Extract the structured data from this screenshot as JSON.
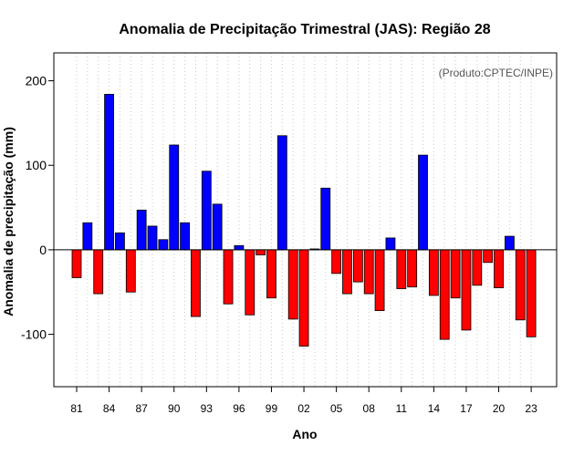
{
  "chart_data": {
    "type": "bar",
    "title": "Anomalia de Precipitação Trimestral (JAS): Região 28",
    "xlabel": "Ano",
    "ylabel": "Anomalia de precipitação (mm)",
    "annotation": "(Produto:CPTEC/INPE)",
    "ylim": [
      -162,
      233
    ],
    "yticks": [
      -100,
      0,
      100,
      200
    ],
    "ytick_labels": [
      "-100",
      "0",
      "100",
      "200"
    ],
    "xtick_years": [
      1981,
      1984,
      1987,
      1990,
      1993,
      1996,
      1999,
      2002,
      2005,
      2008,
      2011,
      2014,
      2017,
      2020,
      2023
    ],
    "xtick_labels": [
      "81",
      "84",
      "87",
      "90",
      "93",
      "96",
      "99",
      "02",
      "05",
      "08",
      "11",
      "14",
      "17",
      "20",
      "23"
    ],
    "grid": "vertical dotted per year",
    "positive_color": "#0000ff",
    "negative_color": "#ff0000",
    "years": [
      1981,
      1982,
      1983,
      1984,
      1985,
      1986,
      1987,
      1988,
      1989,
      1990,
      1991,
      1992,
      1993,
      1994,
      1995,
      1996,
      1997,
      1998,
      1999,
      2000,
      2001,
      2002,
      2003,
      2004,
      2005,
      2006,
      2007,
      2008,
      2009,
      2010,
      2011,
      2012,
      2013,
      2014,
      2015,
      2016,
      2017,
      2018,
      2019,
      2020,
      2021,
      2022,
      2023
    ],
    "values": [
      -33,
      32,
      -52,
      184,
      20,
      -50,
      47,
      28,
      12,
      124,
      32,
      -79,
      93,
      54,
      -64,
      5,
      -77,
      -6,
      -57,
      135,
      -82,
      -114,
      1,
      73,
      -28,
      -52,
      -38,
      -52,
      -72,
      14,
      -46,
      -44,
      112,
      -54,
      -106,
      -57,
      -95,
      -42,
      -15,
      -45,
      16,
      -83,
      -103
    ]
  }
}
